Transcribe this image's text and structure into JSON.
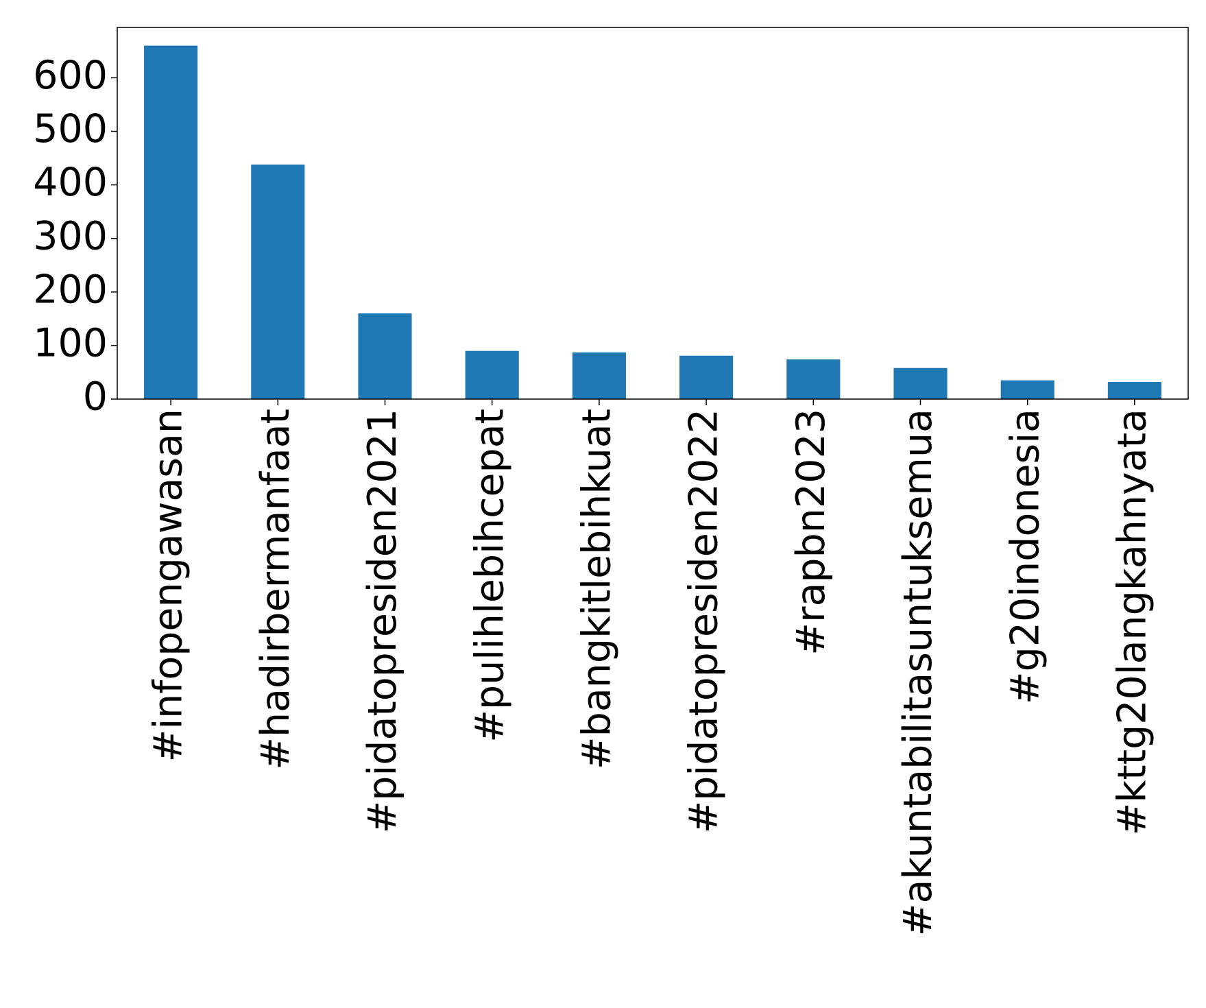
{
  "chart_data": {
    "type": "bar",
    "categories": [
      "#infopengawasan",
      "#hadirbermanfaat",
      "#pidatopresiden2021",
      "#pulihlebihcepat",
      "#bangkitlebihkuat",
      "#pidatopresiden2022",
      "#rapbn2023",
      "#akuntabilitasuntuksemua",
      "#g20indonesia",
      "#kttg20langkahnyata"
    ],
    "values": [
      660,
      438,
      160,
      90,
      87,
      81,
      74,
      58,
      35,
      32
    ],
    "color": "#1f77b4",
    "ylim": [
      0,
      694
    ],
    "yticks": [
      0,
      100,
      200,
      300,
      400,
      500,
      600
    ],
    "grid": false
  }
}
